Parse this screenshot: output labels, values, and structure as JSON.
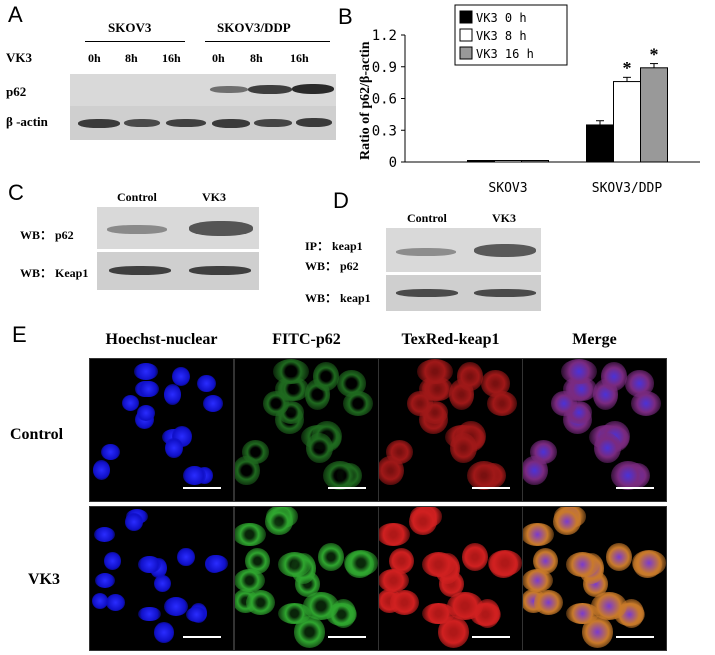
{
  "panelA": {
    "letter": "A",
    "groups": [
      "SKOV3",
      "SKOV3/DDP"
    ],
    "row_label_vk3": "VK3",
    "times": [
      "0h",
      "8h",
      "16h",
      "0h",
      "8h",
      "16h"
    ],
    "row_p62": "p62",
    "row_actin": "β -actin"
  },
  "panelB": {
    "letter": "B",
    "chart_data": {
      "type": "bar",
      "categories": [
        "SKOV3",
        "SKOV3/DDP"
      ],
      "series": [
        {
          "name": "VK3  0 h",
          "values": [
            0.0,
            0.35
          ],
          "color": "#000000"
        },
        {
          "name": "VK3  8 h",
          "values": [
            0.01,
            0.76
          ],
          "color": "#ffffff"
        },
        {
          "name": "VK3  16 h",
          "values": [
            0.01,
            0.89
          ],
          "color": "#999999"
        }
      ],
      "ylabel": "Ratio of p62/β-actin",
      "ylim": [
        0,
        1.2
      ],
      "yticks": [
        "0",
        "0.3",
        "0.6",
        "0.9",
        "1.2"
      ],
      "significance_marks": [
        "*",
        "*"
      ],
      "legend": "top-inside"
    }
  },
  "panelC": {
    "letter": "C",
    "cols": [
      "Control",
      "VK3"
    ],
    "rows": [
      "WB：  p62",
      "WB：  Keap1"
    ]
  },
  "panelD": {
    "letter": "D",
    "cols": [
      "Control",
      "VK3"
    ],
    "row1a": "IP：  keap1",
    "row1b": "WB：  p62",
    "row2": "WB：  keap1"
  },
  "panelE": {
    "letter": "E",
    "columns": [
      "Hoechst-nuclear",
      "FITC-p62",
      "TexRed-keap1",
      "Merge"
    ],
    "rows": [
      "Control",
      "VK3"
    ]
  }
}
